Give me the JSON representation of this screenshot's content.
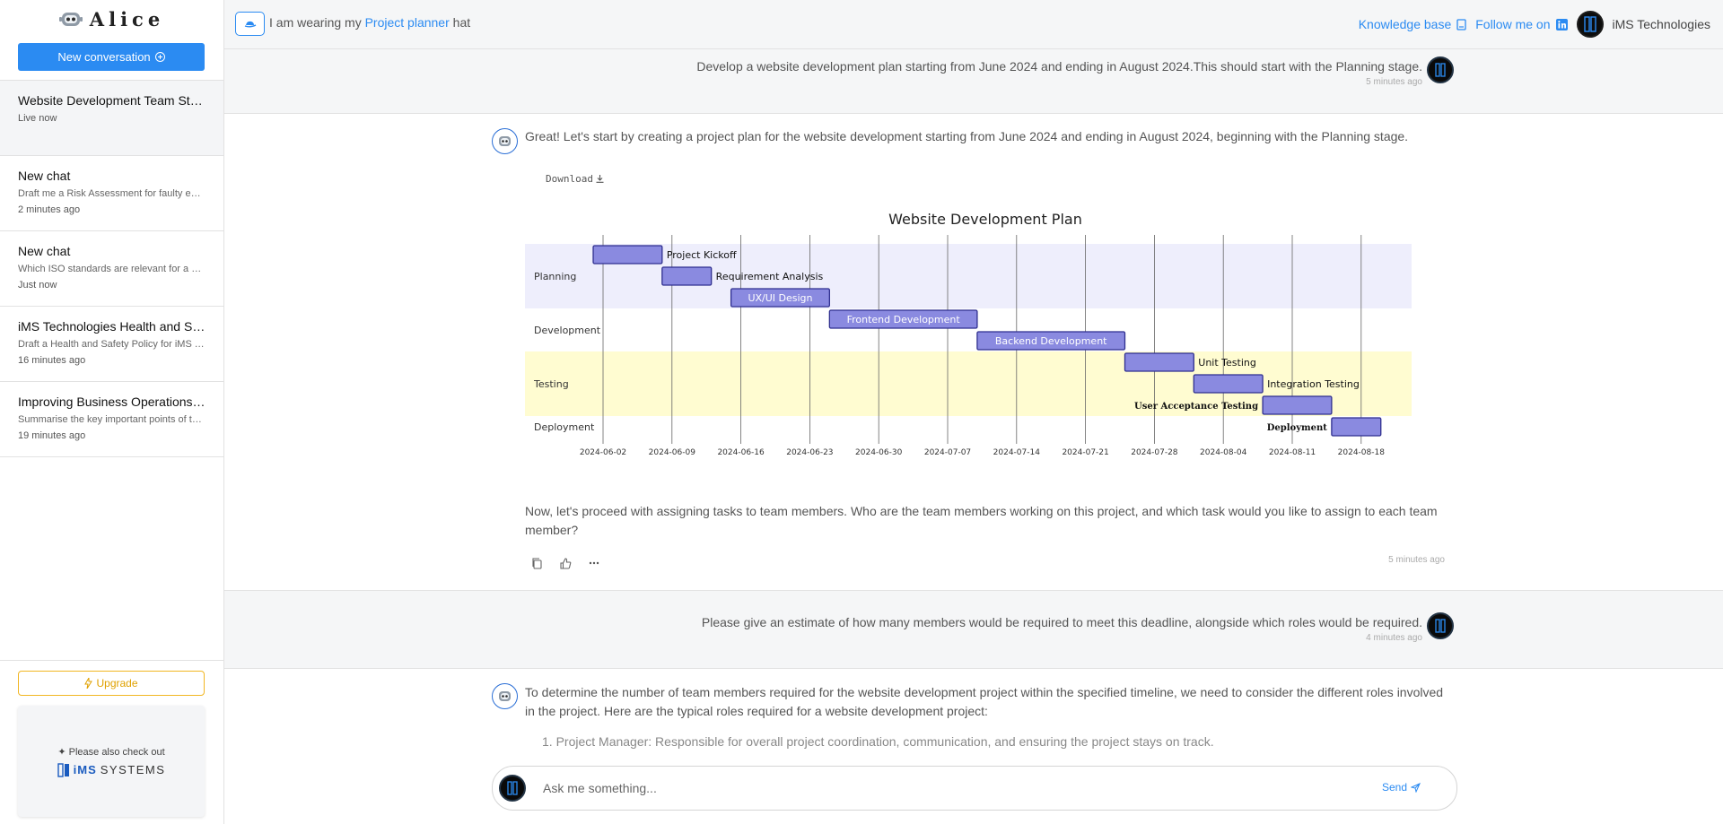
{
  "sidebar": {
    "brand": "Alice",
    "new_conversation": "New conversation",
    "chats": [
      {
        "title": "Website Development Team Structure",
        "preview": "",
        "time": "Live now"
      },
      {
        "title": "New chat",
        "preview": "Draft me a Risk Assessment for faulty equipment",
        "time": "2 minutes ago"
      },
      {
        "title": "New chat",
        "preview": "Which ISO standards are relevant for a construction company",
        "time": "Just now"
      },
      {
        "title": "iMS Technologies Health and Safety Policy",
        "preview": "Draft a Health and Safety Policy for iMS Technologies",
        "time": "16 minutes ago"
      },
      {
        "title": "Improving Business Operations Efficiency",
        "preview": "Summarise the key important points of the document",
        "time": "19 minutes ago"
      }
    ],
    "upgrade": "Upgrade",
    "promo_note": "Please also check out",
    "promo_brand_a": "iMS",
    "promo_brand_b": "SYSTEMS"
  },
  "header": {
    "hat_prefix": "I am wearing my",
    "hat_role": "Project planner",
    "hat_suffix": "hat",
    "knowledge_base": "Knowledge base",
    "follow": "Follow me on",
    "org": "iMS Technologies"
  },
  "messages": {
    "user1": {
      "text": "Develop a website development plan starting from June 2024 and ending in August 2024.This should start with the Planning stage.",
      "time": "5 minutes ago"
    },
    "bot1": {
      "intro": "Great! Let's start by creating a project plan for the website development starting from June 2024 and ending in August 2024, beginning with the Planning stage.",
      "download": "Download",
      "followup": "Now, let's proceed with assigning tasks to team members. Who are the team members working on this project, and which task would you like to assign to each team member?",
      "time": "5 minutes ago"
    },
    "user2": {
      "text": "Please give an estimate of how many members would be required to meet this deadline, alongside which roles would be required.",
      "time": "4 minutes ago"
    },
    "bot2": {
      "intro": "To determine the number of team members required for the website development project within the specified timeline, we need to consider the different roles involved in the project. Here are the typical roles required for a website development project:",
      "list_item_1": "1. Project Manager: Responsible for overall project coordination, communication, and ensuring the project stays on track."
    }
  },
  "composer": {
    "placeholder": "Ask me something...",
    "send": "Send"
  },
  "chart_data": {
    "type": "gantt",
    "title": "Website Development Plan",
    "categories": [
      "Planning",
      "Development",
      "Testing",
      "Deployment"
    ],
    "category_colors": {
      "Planning": "#eeeefc",
      "Development": "#ffffff",
      "Testing": "#fffcd1",
      "Deployment": "#ffffff"
    },
    "bar_color": "#8a8ae0",
    "bar_border": "#2f2f8f",
    "x_ticks": [
      "2024-06-02",
      "2024-06-09",
      "2024-06-16",
      "2024-06-23",
      "2024-06-30",
      "2024-07-07",
      "2024-07-14",
      "2024-07-21",
      "2024-07-28",
      "2024-08-04",
      "2024-08-11",
      "2024-08-18"
    ],
    "tasks": [
      {
        "name": "Project Kickoff",
        "category": "Planning",
        "start": "2024-06-01",
        "end": "2024-06-08"
      },
      {
        "name": "Requirement Analysis",
        "category": "Planning",
        "start": "2024-06-08",
        "end": "2024-06-13"
      },
      {
        "name": "UX/UI Design",
        "category": "Planning",
        "start": "2024-06-15",
        "end": "2024-06-25"
      },
      {
        "name": "Frontend Development",
        "category": "Development",
        "start": "2024-06-25",
        "end": "2024-07-10"
      },
      {
        "name": "Backend Development",
        "category": "Development",
        "start": "2024-07-10",
        "end": "2024-07-25"
      },
      {
        "name": "Unit Testing",
        "category": "Testing",
        "start": "2024-07-25",
        "end": "2024-08-01"
      },
      {
        "name": "Integration Testing",
        "category": "Testing",
        "start": "2024-08-01",
        "end": "2024-08-08"
      },
      {
        "name": "User Acceptance Testing",
        "category": "Testing",
        "start": "2024-08-08",
        "end": "2024-08-15"
      },
      {
        "name": "Deployment",
        "category": "Deployment",
        "start": "2024-08-15",
        "end": "2024-08-20"
      }
    ]
  }
}
